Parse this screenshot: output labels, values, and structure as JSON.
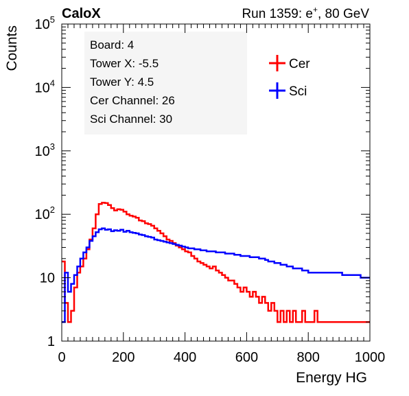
{
  "header": {
    "experiment": "CaloX",
    "run_prefix": "Run 1359: e",
    "run_sup": "+",
    "run_suffix": ", 80 GeV"
  },
  "info_box": {
    "lines": [
      "Board: 4",
      "Tower X: -5.5",
      "Tower Y: 4.5",
      "Cer Channel: 26",
      "Sci Channel: 30"
    ]
  },
  "chart_data": {
    "type": "line",
    "title": "",
    "xlabel": "Energy HG",
    "ylabel": "Counts",
    "xlim": [
      0,
      1000
    ],
    "ylim": [
      1,
      100000
    ],
    "y_scale": "log",
    "grid": false,
    "legend_position": "top-right",
    "x_ticks": [
      {
        "value": 0,
        "label": "0"
      },
      {
        "value": 200,
        "label": "200"
      },
      {
        "value": 400,
        "label": "400"
      },
      {
        "value": 600,
        "label": "600"
      },
      {
        "value": 800,
        "label": "800"
      },
      {
        "value": 1000,
        "label": "1000"
      }
    ],
    "y_ticks": [
      {
        "value": 1,
        "base": "1",
        "exp": ""
      },
      {
        "value": 10,
        "base": "10",
        "exp": ""
      },
      {
        "value": 100,
        "base": "10",
        "exp": "2"
      },
      {
        "value": 1000,
        "base": "10",
        "exp": "3"
      },
      {
        "value": 10000,
        "base": "10",
        "exp": "4"
      },
      {
        "value": 100000,
        "base": "10",
        "exp": "5"
      }
    ],
    "series": [
      {
        "name": "Cer",
        "color": "#ff0000",
        "points": [
          [
            0,
            18
          ],
          [
            10,
            4
          ],
          [
            20,
            2
          ],
          [
            30,
            3
          ],
          [
            40,
            7
          ],
          [
            50,
            12
          ],
          [
            60,
            15
          ],
          [
            70,
            20
          ],
          [
            80,
            28
          ],
          [
            90,
            40
          ],
          [
            100,
            60
          ],
          [
            110,
            100
          ],
          [
            120,
            145
          ],
          [
            130,
            152
          ],
          [
            140,
            150
          ],
          [
            150,
            140
          ],
          [
            160,
            125
          ],
          [
            170,
            115
          ],
          [
            180,
            120
          ],
          [
            190,
            118
          ],
          [
            200,
            110
          ],
          [
            210,
            100
          ],
          [
            220,
            95
          ],
          [
            230,
            92
          ],
          [
            240,
            88
          ],
          [
            250,
            80
          ],
          [
            260,
            78
          ],
          [
            270,
            72
          ],
          [
            280,
            70
          ],
          [
            290,
            66
          ],
          [
            300,
            60
          ],
          [
            310,
            55
          ],
          [
            320,
            50
          ],
          [
            330,
            45
          ],
          [
            340,
            40
          ],
          [
            350,
            38
          ],
          [
            360,
            35
          ],
          [
            370,
            32
          ],
          [
            380,
            30
          ],
          [
            390,
            28
          ],
          [
            400,
            26
          ],
          [
            410,
            25
          ],
          [
            420,
            22
          ],
          [
            430,
            20
          ],
          [
            440,
            18
          ],
          [
            450,
            17
          ],
          [
            460,
            16
          ],
          [
            470,
            15
          ],
          [
            480,
            14
          ],
          [
            490,
            15
          ],
          [
            500,
            13
          ],
          [
            510,
            12
          ],
          [
            520,
            11
          ],
          [
            530,
            10
          ],
          [
            540,
            9
          ],
          [
            550,
            9
          ],
          [
            560,
            8
          ],
          [
            570,
            7
          ],
          [
            580,
            6
          ],
          [
            590,
            7
          ],
          [
            600,
            6
          ],
          [
            610,
            5
          ],
          [
            620,
            6
          ],
          [
            630,
            5
          ],
          [
            640,
            4
          ],
          [
            650,
            5
          ],
          [
            660,
            4
          ],
          [
            670,
            3
          ],
          [
            680,
            4
          ],
          [
            690,
            3
          ],
          [
            700,
            2
          ],
          [
            710,
            3
          ],
          [
            720,
            2
          ],
          [
            730,
            3
          ],
          [
            740,
            2
          ],
          [
            750,
            3
          ],
          [
            760,
            2
          ],
          [
            770,
            2
          ],
          [
            780,
            3
          ],
          [
            790,
            2
          ],
          [
            800,
            2
          ],
          [
            810,
            2
          ],
          [
            820,
            3
          ],
          [
            830,
            2
          ],
          [
            840,
            2
          ],
          [
            850,
            2
          ],
          [
            860,
            2
          ],
          [
            870,
            2
          ],
          [
            880,
            2
          ],
          [
            890,
            2
          ],
          [
            900,
            2
          ],
          [
            910,
            2
          ],
          [
            920,
            2
          ],
          [
            930,
            2
          ],
          [
            940,
            2
          ],
          [
            950,
            2
          ],
          [
            960,
            2
          ],
          [
            970,
            2
          ],
          [
            980,
            2
          ],
          [
            990,
            2
          ],
          [
            1000,
            2
          ]
        ]
      },
      {
        "name": "Sci",
        "color": "#0000ff",
        "points": [
          [
            0,
            2
          ],
          [
            10,
            12
          ],
          [
            20,
            6
          ],
          [
            30,
            8
          ],
          [
            40,
            11
          ],
          [
            50,
            15
          ],
          [
            60,
            20
          ],
          [
            70,
            25
          ],
          [
            80,
            30
          ],
          [
            90,
            38
          ],
          [
            100,
            45
          ],
          [
            110,
            52
          ],
          [
            120,
            58
          ],
          [
            130,
            60
          ],
          [
            140,
            57
          ],
          [
            150,
            58
          ],
          [
            160,
            54
          ],
          [
            170,
            56
          ],
          [
            180,
            55
          ],
          [
            190,
            57
          ],
          [
            200,
            53
          ],
          [
            210,
            55
          ],
          [
            220,
            52
          ],
          [
            230,
            51
          ],
          [
            240,
            50
          ],
          [
            250,
            48
          ],
          [
            260,
            47
          ],
          [
            270,
            45
          ],
          [
            280,
            44
          ],
          [
            290,
            43
          ],
          [
            300,
            40
          ],
          [
            310,
            39
          ],
          [
            320,
            38
          ],
          [
            330,
            37
          ],
          [
            340,
            36
          ],
          [
            350,
            35
          ],
          [
            360,
            34
          ],
          [
            370,
            33
          ],
          [
            380,
            32
          ],
          [
            390,
            31
          ],
          [
            400,
            30
          ],
          [
            410,
            29
          ],
          [
            420,
            29
          ],
          [
            430,
            28
          ],
          [
            440,
            28
          ],
          [
            450,
            27
          ],
          [
            460,
            27
          ],
          [
            470,
            26
          ],
          [
            480,
            26
          ],
          [
            490,
            26
          ],
          [
            500,
            25
          ],
          [
            510,
            25
          ],
          [
            520,
            25
          ],
          [
            530,
            24
          ],
          [
            540,
            24
          ],
          [
            550,
            24
          ],
          [
            560,
            23
          ],
          [
            570,
            23
          ],
          [
            580,
            22
          ],
          [
            590,
            22
          ],
          [
            600,
            22
          ],
          [
            610,
            21
          ],
          [
            620,
            21
          ],
          [
            630,
            21
          ],
          [
            640,
            20
          ],
          [
            650,
            20
          ],
          [
            660,
            19
          ],
          [
            670,
            18
          ],
          [
            680,
            18
          ],
          [
            690,
            17
          ],
          [
            700,
            17
          ],
          [
            710,
            16
          ],
          [
            720,
            16
          ],
          [
            730,
            15
          ],
          [
            740,
            15
          ],
          [
            750,
            14
          ],
          [
            760,
            14
          ],
          [
            770,
            14
          ],
          [
            780,
            13
          ],
          [
            790,
            13
          ],
          [
            800,
            12
          ],
          [
            810,
            12
          ],
          [
            820,
            12
          ],
          [
            830,
            12
          ],
          [
            840,
            12
          ],
          [
            850,
            12
          ],
          [
            860,
            12
          ],
          [
            870,
            12
          ],
          [
            880,
            12
          ],
          [
            890,
            12
          ],
          [
            900,
            12
          ],
          [
            910,
            11
          ],
          [
            920,
            11
          ],
          [
            930,
            11
          ],
          [
            940,
            11
          ],
          [
            950,
            11
          ],
          [
            960,
            11
          ],
          [
            970,
            10
          ],
          [
            980,
            10
          ],
          [
            990,
            10
          ],
          [
            1000,
            9
          ]
        ]
      }
    ]
  }
}
